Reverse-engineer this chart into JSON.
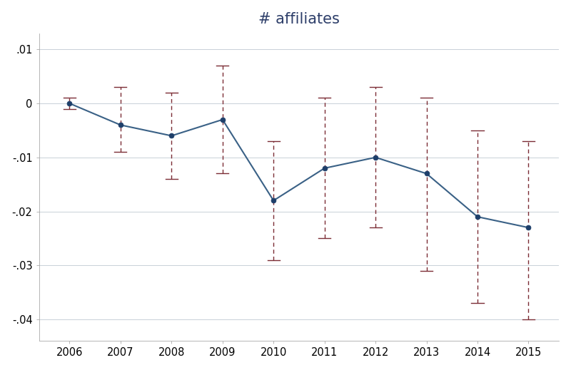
{
  "title": "# affiliates",
  "years": [
    2006,
    2007,
    2008,
    2009,
    2010,
    2011,
    2012,
    2013,
    2014,
    2015
  ],
  "values": [
    0.0,
    -0.004,
    -0.006,
    -0.003,
    -0.018,
    -0.012,
    -0.01,
    -0.013,
    -0.021,
    -0.023
  ],
  "ci_upper": [
    0.001,
    0.003,
    0.002,
    0.007,
    -0.007,
    0.001,
    0.003,
    0.001,
    -0.005,
    -0.007
  ],
  "ci_lower": [
    -0.001,
    -0.009,
    -0.014,
    -0.013,
    -0.029,
    -0.025,
    -0.023,
    -0.031,
    -0.037,
    -0.04
  ],
  "line_color": "#3a6186",
  "marker_color": "#1e3f6a",
  "errorbar_color": "#7b2d35",
  "title_color": "#2e3f6a",
  "title_fontsize": 15,
  "background_color": "#ffffff",
  "grid_color": "#c8d0d8",
  "ylim": [
    -0.044,
    0.013
  ],
  "yticks": [
    0.01,
    0.0,
    -0.01,
    -0.02,
    -0.03,
    -0.04
  ],
  "ytick_labels": [
    ".01",
    "0",
    "-.01",
    "-.02",
    "-.03",
    "-.04"
  ],
  "xlim": [
    2005.4,
    2015.6
  ]
}
